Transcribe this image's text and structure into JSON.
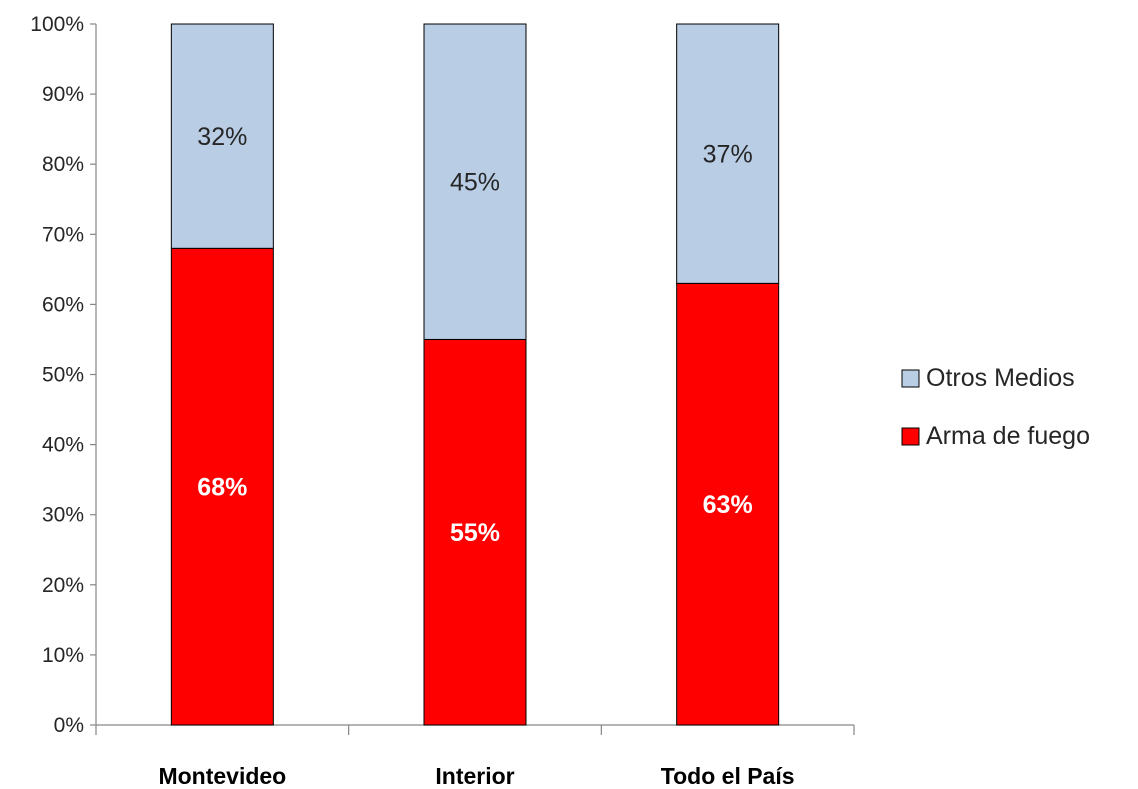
{
  "chart_data": {
    "type": "bar",
    "stacked": true,
    "categories": [
      "Montevideo",
      "Interior",
      "Todo el País"
    ],
    "series": [
      {
        "name": "Arma de fuego",
        "values": [
          68,
          55,
          63
        ],
        "labels": [
          "68%",
          "55%",
          "63%"
        ],
        "color": "#ff0000"
      },
      {
        "name": "Otros Medios",
        "values": [
          32,
          45,
          37
        ],
        "labels": [
          "32%",
          "45%",
          "37%"
        ],
        "color": "#b9cde5"
      }
    ],
    "ylim": [
      0,
      100
    ],
    "yticks": [
      "0%",
      "10%",
      "20%",
      "30%",
      "40%",
      "50%",
      "60%",
      "70%",
      "80%",
      "90%",
      "100%"
    ],
    "legend": {
      "position": "right",
      "entries": [
        {
          "label": "Otros Medios",
          "color": "#b9cde5"
        },
        {
          "label": "Arma de fuego",
          "color": "#ff0000"
        }
      ]
    },
    "grid": false,
    "title": "",
    "xlabel": "",
    "ylabel": ""
  }
}
